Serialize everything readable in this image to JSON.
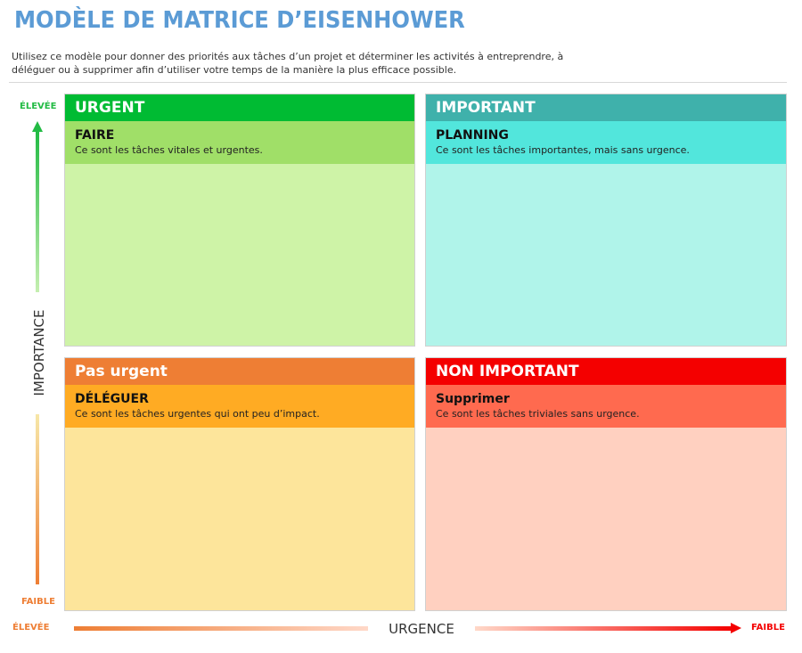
{
  "title": "MODÈLE DE MATRICE D’EISENHOWER",
  "description": "Utilisez ce modèle pour donner des priorités aux tâches d’un projet et déterminer les activités à entreprendre, à déléguer ou à supprimer afin d’utiliser votre temps de la manière la plus efficace possible.",
  "vertical_axis": {
    "label": "IMPORTANCE",
    "top": "ÉLEVÉE",
    "bottom": "FAIBLE"
  },
  "horizontal_axis": {
    "label": "URGENCE",
    "left": "ÉLEVÉE",
    "right": "FAIBLE"
  },
  "quadrants": [
    {
      "header": "URGENT",
      "title": "FAIRE",
      "text": "Ce sont les tâches vitales et urgentes.",
      "colors": {
        "header": "#00bb33",
        "sub": "#a0df68",
        "body": "#cef3a7"
      }
    },
    {
      "header": "IMPORTANT",
      "title": "PLANNING",
      "text": "Ce sont les tâches importantes, mais sans urgence.",
      "colors": {
        "header": "#3fb1ab",
        "sub": "#52e6dc",
        "body": "#b0f4ea"
      }
    },
    {
      "header": "Pas urgent",
      "title": "DÉLÉGUER",
      "text": "Ce sont les tâches urgentes qui ont peu d’impact.",
      "colors": {
        "header": "#ee7e34",
        "sub": "#ffab23",
        "body": "#fde59b"
      }
    },
    {
      "header": "NON IMPORTANT",
      "title": "Supprimer",
      "text": "Ce sont les tâches triviales sans urgence.",
      "colors": {
        "header": "#f40000",
        "sub": "#ff6a4f",
        "body": "#ffd0c0"
      }
    }
  ]
}
